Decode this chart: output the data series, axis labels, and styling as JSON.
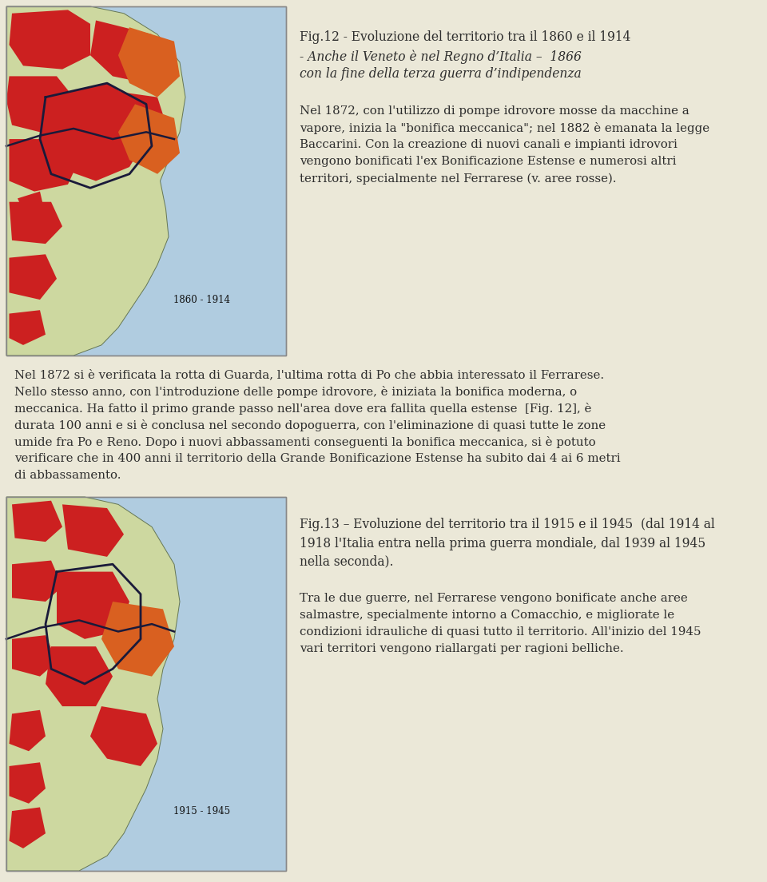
{
  "page_bg": "#ebe8d8",
  "text_color": "#2d2d2d",
  "sea_color": "#b0cce0",
  "land_color": "#cdd8a0",
  "red_color": "#cc2020",
  "orange_color": "#d96020",
  "dark_line": "#1a1a3a",
  "map_border": "#888888",
  "fig12_title_line1": "Fig.12 - Evoluzione del territorio tra il 1860 e il 1914",
  "fig12_title_line2": "- Anche il Veneto è nel Regno d’Italia –  1866",
  "fig12_title_line3": "con la fine della terza guerra d’indipendenza",
  "fig12_lines": [
    "Nel 1872, con l'utilizzo di pompe idrovore mosse da macchine a",
    "vapore, inizia la \"bonifica meccanica\"; nel 1882 è emanata la legge",
    "Baccarini. Con la creazione di nuovi canali e impianti idrovori",
    "vengono bonificati l'ex Bonificazione Estense e numerosi altri",
    "territori, specialmente nel Ferrarese (v. aree rosse)."
  ],
  "middle_lines": [
    "Nel 1872 si è verificata la rotta di Guarda, l'ultima rotta di Po che abbia interessato il Ferrarese.",
    "Nello stesso anno, con l'introduzione delle pompe idrovore, è iniziata la bonifica moderna, o",
    "meccanica. Ha fatto il primo grande passo nell'area dove era fallita quella estense  [Fig. 12], è",
    "durata 100 anni e si è conclusa nel secondo dopoguerra, con l'eliminazione di quasi tutte le zone",
    "umide fra Po e Reno. Dopo i nuovi abbassamenti conseguenti la bonifica meccanica, si è potuto",
    "verificare che in 400 anni il territorio della Grande Bonificazione Estense ha subito dai 4 ai 6 metri",
    "di abbassamento."
  ],
  "fig13_title_line1": "Fig.13 – Evoluzione del territorio tra il 1915 e il 1945  (dal 1914 al",
  "fig13_title_line2": "1918 l'Italia entra nella prima guerra mondiale, dal 1939 al 1945",
  "fig13_title_line3": "nella seconda).",
  "fig13_lines": [
    "Tra le due guerre, nel Ferrarese vengono bonificate anche aree",
    "salmastre, specialmente intorno a Comacchio, e migliorate le",
    "condizioni idrauliche di quasi tutto il territorio. All'inizio del 1945",
    "vari territori vengono riallargati per ragioni belliche."
  ],
  "map1_date": "1860 - 1914",
  "map2_date": "1915 - 1945"
}
